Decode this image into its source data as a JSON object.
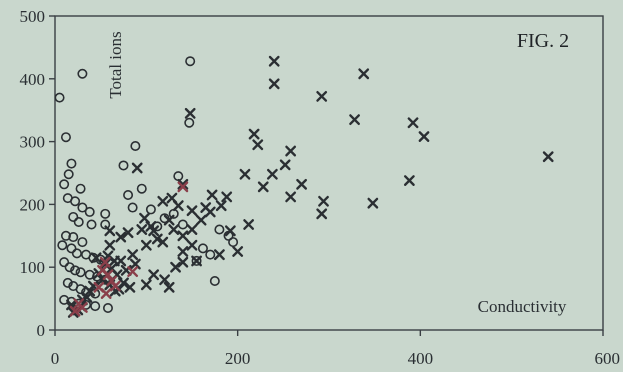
{
  "chart_data": {
    "type": "scatter",
    "title": "FIG. 2",
    "xlabel": "Conductivity",
    "ylabel": "Total ions",
    "xlim": [
      0,
      600
    ],
    "ylim": [
      0,
      500
    ],
    "x_ticks": [
      "0",
      "200",
      "400",
      "600"
    ],
    "y_ticks": [
      "0",
      "100",
      "200",
      "300",
      "400",
      "500"
    ],
    "grid": false,
    "series": [
      {
        "marker": "circle",
        "color": "#2b2f33",
        "points": [
          [
            30,
            408
          ],
          [
            148,
            428
          ],
          [
            5,
            370
          ],
          [
            147,
            330
          ],
          [
            12,
            307
          ],
          [
            18,
            265
          ],
          [
            15,
            248
          ],
          [
            88,
            293
          ],
          [
            10,
            232
          ],
          [
            28,
            225
          ],
          [
            14,
            210
          ],
          [
            22,
            205
          ],
          [
            30,
            195
          ],
          [
            38,
            188
          ],
          [
            55,
            185
          ],
          [
            20,
            180
          ],
          [
            26,
            172
          ],
          [
            40,
            168
          ],
          [
            55,
            168
          ],
          [
            12,
            150
          ],
          [
            20,
            148
          ],
          [
            30,
            140
          ],
          [
            8,
            135
          ],
          [
            18,
            130
          ],
          [
            24,
            122
          ],
          [
            34,
            120
          ],
          [
            42,
            115
          ],
          [
            50,
            112
          ],
          [
            10,
            108
          ],
          [
            16,
            100
          ],
          [
            22,
            95
          ],
          [
            28,
            92
          ],
          [
            38,
            88
          ],
          [
            46,
            85
          ],
          [
            55,
            80
          ],
          [
            14,
            75
          ],
          [
            20,
            70
          ],
          [
            28,
            65
          ],
          [
            34,
            60
          ],
          [
            44,
            58
          ],
          [
            10,
            48
          ],
          [
            18,
            45
          ],
          [
            26,
            42
          ],
          [
            34,
            40
          ],
          [
            44,
            38
          ],
          [
            58,
            35
          ],
          [
            75,
            262
          ],
          [
            80,
            215
          ],
          [
            85,
            195
          ],
          [
            95,
            225
          ],
          [
            105,
            192
          ],
          [
            112,
            165
          ],
          [
            120,
            178
          ],
          [
            130,
            185
          ],
          [
            140,
            168
          ],
          [
            135,
            245
          ],
          [
            155,
            110
          ],
          [
            162,
            130
          ],
          [
            170,
            120
          ],
          [
            180,
            160
          ],
          [
            190,
            150
          ],
          [
            195,
            140
          ],
          [
            175,
            78
          ]
        ]
      },
      {
        "marker": "x",
        "color": "#2b2f33",
        "points": [
          [
            240,
            428
          ],
          [
            240,
            392
          ],
          [
            338,
            408
          ],
          [
            148,
            345
          ],
          [
            292,
            372
          ],
          [
            328,
            335
          ],
          [
            392,
            330
          ],
          [
            404,
            308
          ],
          [
            540,
            276
          ],
          [
            218,
            312
          ],
          [
            222,
            295
          ],
          [
            258,
            285
          ],
          [
            252,
            263
          ],
          [
            208,
            248
          ],
          [
            228,
            228
          ],
          [
            238,
            248
          ],
          [
            270,
            232
          ],
          [
            258,
            212
          ],
          [
            294,
            205
          ],
          [
            292,
            185
          ],
          [
            348,
            202
          ],
          [
            388,
            238
          ],
          [
            90,
            258
          ],
          [
            140,
            232
          ],
          [
            172,
            215
          ],
          [
            182,
            198
          ],
          [
            188,
            212
          ],
          [
            212,
            168
          ],
          [
            200,
            125
          ],
          [
            180,
            120
          ],
          [
            155,
            110
          ],
          [
            150,
            135
          ],
          [
            140,
            150
          ],
          [
            130,
            160
          ],
          [
            125,
            175
          ],
          [
            118,
            140
          ],
          [
            108,
            158
          ],
          [
            100,
            135
          ],
          [
            95,
            160
          ],
          [
            88,
            105
          ],
          [
            85,
            120
          ],
          [
            78,
            95
          ],
          [
            72,
            110
          ],
          [
            68,
            88
          ],
          [
            62,
            98
          ],
          [
            55,
            105
          ],
          [
            52,
            80
          ],
          [
            48,
            90
          ],
          [
            42,
            70
          ],
          [
            38,
            62
          ],
          [
            35,
            52
          ],
          [
            30,
            48
          ],
          [
            28,
            38
          ],
          [
            25,
            32
          ],
          [
            20,
            28
          ],
          [
            18,
            40
          ],
          [
            60,
            72
          ],
          [
            66,
            62
          ],
          [
            75,
            75
          ],
          [
            82,
            68
          ],
          [
            100,
            72
          ],
          [
            108,
            88
          ],
          [
            120,
            80
          ],
          [
            125,
            68
          ],
          [
            132,
            100
          ],
          [
            140,
            125
          ],
          [
            150,
            160
          ],
          [
            160,
            175
          ],
          [
            165,
            195
          ],
          [
            170,
            188
          ],
          [
            128,
            210
          ],
          [
            135,
            198
          ],
          [
            60,
            135
          ],
          [
            112,
            145
          ],
          [
            80,
            155
          ],
          [
            192,
            158
          ],
          [
            65,
            110
          ],
          [
            70,
            65
          ],
          [
            45,
            115
          ],
          [
            58,
            118
          ],
          [
            150,
            190
          ],
          [
            118,
            205
          ],
          [
            105,
            165
          ],
          [
            98,
            178
          ],
          [
            72,
            148
          ],
          [
            60,
            158
          ],
          [
            140,
            108
          ]
        ]
      },
      {
        "marker": "x",
        "color": "#8a3f4a",
        "points": [
          [
            22,
            30
          ],
          [
            26,
            42
          ],
          [
            30,
            36
          ],
          [
            52,
            95
          ],
          [
            58,
            88
          ],
          [
            62,
            78
          ],
          [
            55,
            108
          ],
          [
            48,
            68
          ],
          [
            66,
            70
          ],
          [
            85,
            93
          ],
          [
            140,
            228
          ],
          [
            56,
            58
          ]
        ]
      }
    ]
  }
}
